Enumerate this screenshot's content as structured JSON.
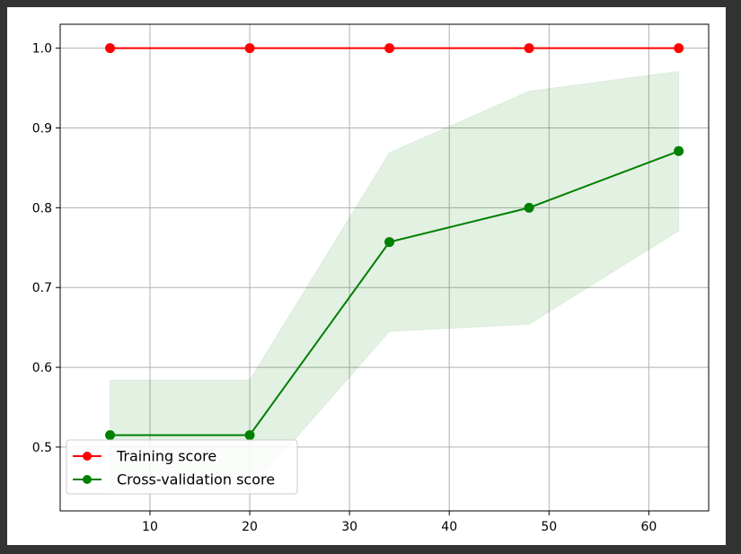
{
  "chart_data": {
    "type": "line",
    "title": "",
    "xlabel": "",
    "ylabel": "",
    "x": [
      6,
      20,
      34,
      48,
      63
    ],
    "xlim": [
      1,
      66
    ],
    "ylim": [
      0.42,
      1.03
    ],
    "xticks": [
      10,
      20,
      30,
      40,
      50,
      60
    ],
    "yticks": [
      0.5,
      0.6,
      0.7,
      0.8,
      0.9,
      1.0
    ],
    "xtick_labels": [
      "10",
      "20",
      "30",
      "40",
      "50",
      "60"
    ],
    "ytick_labels": [
      "0.5",
      "0.6",
      "0.7",
      "0.8",
      "0.9",
      "1.0"
    ],
    "grid": true,
    "legend_position": "lower-left",
    "series": [
      {
        "name": "Training score",
        "color": "#ff0000",
        "values": [
          1.0,
          1.0,
          1.0,
          1.0,
          1.0
        ],
        "band_lower": [
          1.0,
          1.0,
          1.0,
          1.0,
          1.0
        ],
        "band_upper": [
          1.0,
          1.0,
          1.0,
          1.0,
          1.0
        ]
      },
      {
        "name": "Cross-validation score",
        "color": "#008000",
        "band_color": "#008000",
        "values": [
          0.515,
          0.515,
          0.757,
          0.8,
          0.871
        ],
        "band_lower": [
          0.445,
          0.445,
          0.645,
          0.654,
          0.771
        ],
        "band_upper": [
          0.584,
          0.584,
          0.869,
          0.946,
          0.971
        ]
      }
    ]
  }
}
